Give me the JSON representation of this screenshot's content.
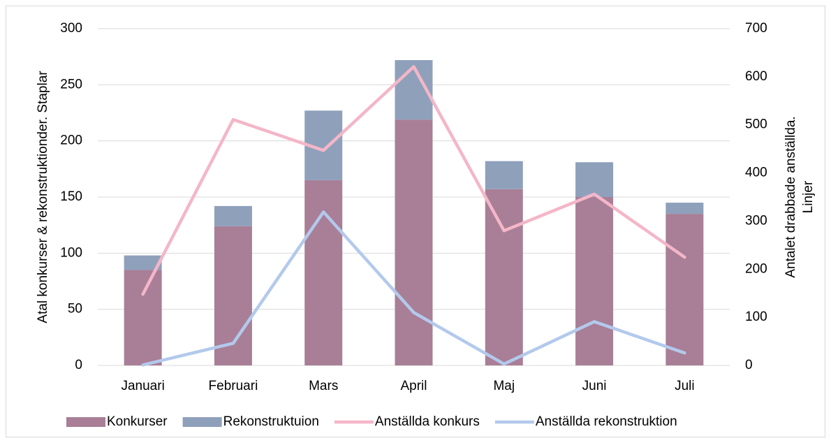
{
  "chart_data": {
    "type": "bar",
    "categories": [
      "Januari",
      "Februari",
      "Mars",
      "April",
      "Maj",
      "Juni",
      "Juli"
    ],
    "series": [
      {
        "name": "Konkurser",
        "type": "bar",
        "color": "#a87f96",
        "values": [
          85,
          124,
          165,
          219,
          157,
          150,
          135
        ]
      },
      {
        "name": "Rekonstruktuion",
        "type": "bar",
        "color": "#8fa0bb",
        "values": [
          13,
          18,
          62,
          53,
          25,
          31,
          10
        ]
      },
      {
        "name": "Anställda konkurs",
        "type": "line",
        "axis": "y2",
        "color": "#f4b6c8",
        "values": [
          148,
          511,
          447,
          621,
          280,
          356,
          225
        ]
      },
      {
        "name": "Anställda rekonstruktion",
        "type": "line",
        "axis": "y2",
        "color": "#b3c9ec",
        "values": [
          1,
          46,
          319,
          110,
          3,
          91,
          26
        ]
      }
    ],
    "ylabel": "Atal konkurser & rekonstruktionder. Staplar",
    "y2label": [
      "Antalet drabbade anställda.",
      "Linjer"
    ],
    "ylim": [
      0,
      300
    ],
    "yticks": [
      0,
      50,
      100,
      150,
      200,
      250,
      300
    ],
    "y2lim": [
      0,
      700
    ],
    "y2ticks": [
      0,
      100,
      200,
      300,
      400,
      500,
      600,
      700
    ],
    "grid": true,
    "legend": "bottom"
  }
}
